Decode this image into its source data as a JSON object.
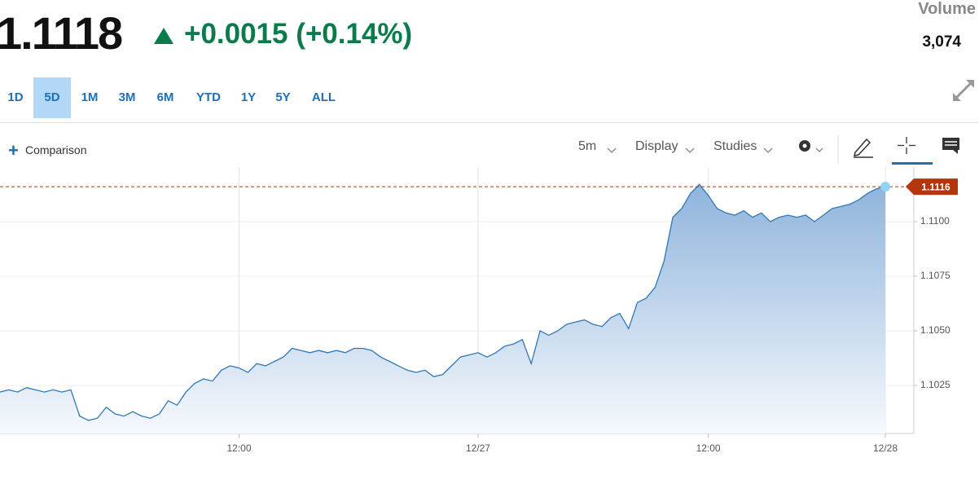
{
  "header": {
    "price": "1.1118",
    "change": "+0.0015 (+0.14%)",
    "volume_label": "Volume",
    "volume": "3,074"
  },
  "tabs": {
    "items": [
      "1D",
      "5D",
      "1M",
      "3M",
      "6M",
      "YTD",
      "1Y",
      "5Y",
      "ALL"
    ],
    "selected": "5D"
  },
  "toolbar": {
    "comparison": "Comparison",
    "interval": "5m",
    "display": "Display",
    "studies": "Studies"
  },
  "chart_data": {
    "type": "area",
    "categories": [
      null,
      null,
      null,
      null,
      null,
      null,
      null,
      null,
      null,
      null,
      null,
      null,
      null,
      null,
      null,
      null,
      null,
      null,
      null,
      null,
      null,
      null,
      null,
      null,
      null,
      null,
      null,
      "12:00",
      null,
      null,
      null,
      null,
      null,
      null,
      null,
      null,
      null,
      null,
      null,
      null,
      null,
      null,
      null,
      null,
      null,
      null,
      null,
      null,
      null,
      null,
      null,
      null,
      null,
      null,
      "12/27",
      null,
      null,
      null,
      null,
      null,
      null,
      null,
      null,
      null,
      null,
      null,
      null,
      null,
      null,
      null,
      null,
      null,
      null,
      null,
      null,
      null,
      null,
      null,
      null,
      null,
      "12:00",
      null,
      null,
      null,
      null,
      null,
      null,
      null,
      null,
      null,
      null,
      null,
      null,
      null,
      null,
      null,
      null,
      null,
      null,
      null,
      "12/28"
    ],
    "values": [
      1.1022,
      1.1023,
      1.1022,
      1.1024,
      1.1023,
      1.1022,
      1.1023,
      1.1022,
      1.1023,
      1.1011,
      1.1009,
      1.101,
      1.1015,
      1.1012,
      1.1011,
      1.1013,
      1.1011,
      1.101,
      1.1012,
      1.1018,
      1.1016,
      1.1022,
      1.1026,
      1.1028,
      1.1027,
      1.1032,
      1.1034,
      1.1033,
      1.1031,
      1.1035,
      1.1034,
      1.1036,
      1.1038,
      1.1042,
      1.1041,
      1.104,
      1.1041,
      1.104,
      1.1041,
      1.104,
      1.1042,
      1.1042,
      1.1041,
      1.1038,
      1.1036,
      1.1034,
      1.1032,
      1.1031,
      1.1032,
      1.1029,
      1.103,
      1.1034,
      1.1038,
      1.1039,
      1.104,
      1.1038,
      1.104,
      1.1043,
      1.1044,
      1.1046,
      1.1035,
      1.105,
      1.1048,
      1.105,
      1.1053,
      1.1054,
      1.1055,
      1.1053,
      1.1052,
      1.1056,
      1.1058,
      1.1051,
      1.1063,
      1.1065,
      1.107,
      1.1082,
      1.1102,
      1.1106,
      1.1113,
      1.1117,
      1.1112,
      1.1106,
      1.1104,
      1.1103,
      1.1105,
      1.1102,
      1.1104,
      1.11,
      1.1102,
      1.1103,
      1.1102,
      1.1103,
      1.11,
      1.1103,
      1.1106,
      1.1107,
      1.1108,
      1.111,
      1.1113,
      1.1115,
      1.1116
    ],
    "color": "#2f78b7",
    "ylim": [
      1.1003,
      1.1125
    ],
    "yticks": [
      1.1025,
      {
        "value": 1.105,
        "label": "1.1050"
      },
      1.1075,
      {
        "value": 1.11,
        "label": "1.1100"
      }
    ],
    "grid": true
  }
}
